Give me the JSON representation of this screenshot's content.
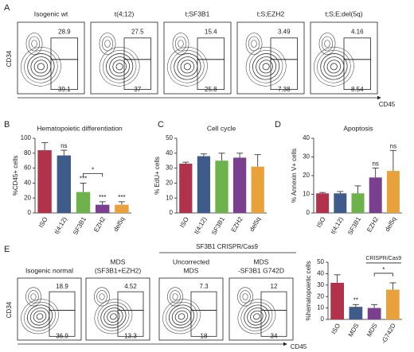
{
  "figure": {
    "panel_labels": [
      "A",
      "B",
      "C",
      "D",
      "E"
    ],
    "a": {
      "y_axis": "CD34",
      "x_axis": "CD45",
      "plots": [
        {
          "title": "Isogenic wt",
          "upper": "28.9",
          "lower": "39.1"
        },
        {
          "title": "t(4;12)",
          "upper": "27.5",
          "lower": "37"
        },
        {
          "title": "t;SF3B1",
          "upper": "15.4",
          "lower": "25.8"
        },
        {
          "title": "t;S;EZH2",
          "upper": "3.49",
          "lower": "7.38"
        },
        {
          "title": "t;S;E;del(5q)",
          "upper": "4.16",
          "lower": "8.54"
        }
      ]
    },
    "e": {
      "y_axis": "CD34",
      "x_axis": "CD45",
      "group_label": "SF3B1 CRISPR/Cas9",
      "plots": [
        {
          "title": "Isogenic normal",
          "upper": "18.9",
          "lower": "36.9"
        },
        {
          "title": "MDS",
          "subtitle": "(SF3B1+EZH2)",
          "upper": "4.52",
          "lower": "13.3"
        },
        {
          "title": "Uncorrected",
          "subtitle": "MDS",
          "upper": "7.3",
          "lower": "18"
        },
        {
          "title": "MDS",
          "subtitle": "-SF3B1 G742D",
          "upper": "12",
          "lower": "34"
        }
      ]
    }
  },
  "chart_data": [
    {
      "type": "bar",
      "title": "Hematopoietic differentiation",
      "y_label": "%CD45+ cells",
      "categories": [
        "ISO",
        "t(4;12)",
        "SF3B1",
        "EZH2",
        "del5q"
      ],
      "values": [
        84,
        77,
        28,
        11,
        11
      ],
      "errors": [
        10,
        7,
        12,
        4,
        4
      ],
      "colors": [
        "#b3324b",
        "#3f5b8a",
        "#6db24b",
        "#7b3f8f",
        "#e9a13b"
      ],
      "ylim": [
        0,
        100
      ],
      "yticks": [
        0,
        20,
        40,
        60,
        80,
        100
      ],
      "significance": [
        null,
        "ns",
        "***",
        "***",
        "***"
      ],
      "bracket": {
        "label": "*"
      }
    },
    {
      "type": "bar",
      "title": "Cell cycle",
      "y_label": "% EdU+ cells",
      "categories": [
        "ISO",
        "t(4;12)",
        "SF3B1",
        "EZH2",
        "del5q"
      ],
      "values": [
        33,
        38,
        35,
        37,
        31
      ],
      "errors": [
        1,
        1.5,
        5,
        3,
        8
      ],
      "colors": [
        "#b3324b",
        "#3f5b8a",
        "#6db24b",
        "#7b3f8f",
        "#e9a13b"
      ],
      "ylim": [
        0,
        50
      ],
      "yticks": [
        0,
        10,
        20,
        30,
        40,
        50
      ]
    },
    {
      "type": "bar",
      "title": "Apoptosis",
      "y_label": "% Annexin V+ cells",
      "categories": [
        "ISO",
        "t(4;12)",
        "SF3B1",
        "EZH2",
        "del5q"
      ],
      "values": [
        10.5,
        10.5,
        10.5,
        19,
        22.5
      ],
      "errors": [
        0.5,
        1,
        4,
        5,
        11
      ],
      "colors": [
        "#b3324b",
        "#3f5b8a",
        "#6db24b",
        "#7b3f8f",
        "#e9a13b"
      ],
      "ylim": [
        0,
        40
      ],
      "yticks": [
        0,
        10,
        20,
        30,
        40
      ],
      "significance": [
        null,
        null,
        null,
        "ns",
        "ns"
      ]
    },
    {
      "type": "bar",
      "y_label": "%hematopoietic cells",
      "categories": [
        "ISO",
        "MDS",
        "MDS",
        "-G742D"
      ],
      "values": [
        32,
        11,
        10,
        26
      ],
      "errors": [
        7,
        2,
        3,
        6
      ],
      "colors": [
        "#b3324b",
        "#3f5b8a",
        "#7b3f8f",
        "#e9a13b"
      ],
      "ylim": [
        0,
        50
      ],
      "yticks": [
        0,
        10,
        20,
        30,
        40,
        50
      ],
      "significance": [
        null,
        "**",
        null,
        null
      ],
      "bracket": {
        "label": "*",
        "title": "CRISPR/Cas9"
      }
    }
  ]
}
